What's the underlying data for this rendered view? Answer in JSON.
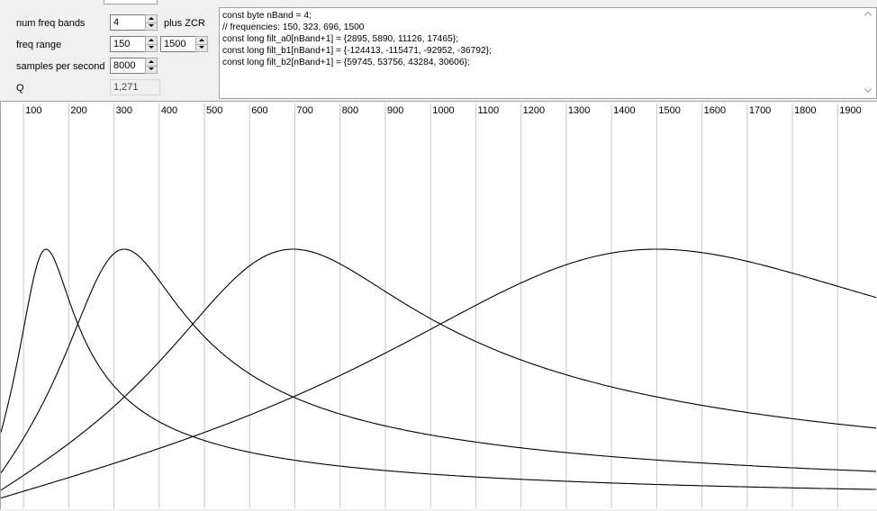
{
  "controls": {
    "num_freq_bands": {
      "label": "num freq bands",
      "value": "4",
      "extra_label": "plus ZCR"
    },
    "freq_range": {
      "label": "freq range",
      "min": "150",
      "max": "1500"
    },
    "samples_per_second": {
      "label": "samples per second",
      "value": "8000"
    },
    "q": {
      "label": "Q",
      "value": "1,271"
    }
  },
  "code_output": {
    "lines": [
      "const byte nBand = 4;",
      "// frequencies: 150, 323, 696, 1500",
      "const long filt_a0[nBand+1] = {2895, 5890, 11126, 17465};",
      "const long filt_b1[nBand+1] = {-124413, -115471, -92952, -36792};",
      "const long filt_b2[nBand+1] = {59745, 53756, 43284, 30606};"
    ]
  },
  "chart_data": {
    "type": "line",
    "x_ticks": [
      100,
      200,
      300,
      400,
      500,
      600,
      700,
      800,
      900,
      1000,
      1100,
      1200,
      1300,
      1400,
      1500,
      1600,
      1700,
      1800,
      1900
    ],
    "xlim": [
      50,
      1985
    ],
    "grid": true,
    "center_frequencies": [
      150,
      323,
      696,
      1500
    ],
    "q": 1.271,
    "series": [
      {
        "center": 150
      },
      {
        "center": 323
      },
      {
        "center": 696
      },
      {
        "center": 1500
      }
    ]
  }
}
